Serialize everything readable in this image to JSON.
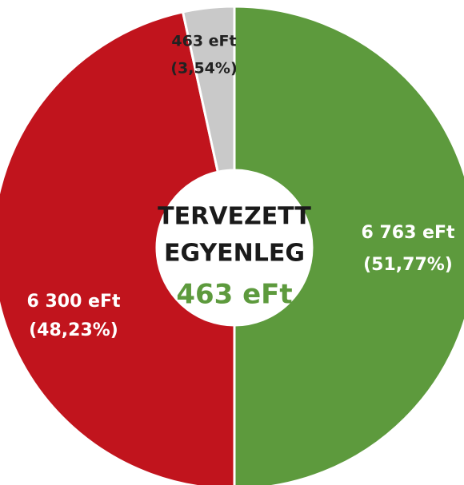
{
  "chart_data": {
    "type": "pie",
    "values": [
      6763,
      6300,
      463
    ],
    "value_labels": [
      "6 763 eFt",
      "6 300 eFt",
      "463 eFt"
    ],
    "percentages": [
      51.77,
      48.23,
      3.54
    ],
    "percentage_labels": [
      "(51,77%)",
      "(48,23%)",
      "(3,54%)"
    ],
    "colors": [
      "#5d9a3d",
      "#c1141d",
      "#c9c9c9"
    ],
    "label_colors": [
      "#ffffff",
      "#ffffff",
      "#222222"
    ],
    "center_lines": [
      "TERVEZETT",
      "EGYENLEG"
    ],
    "center_value": {
      "value": 463,
      "label": "463 eFt"
    },
    "center_value_color": "#5d9a3d"
  }
}
